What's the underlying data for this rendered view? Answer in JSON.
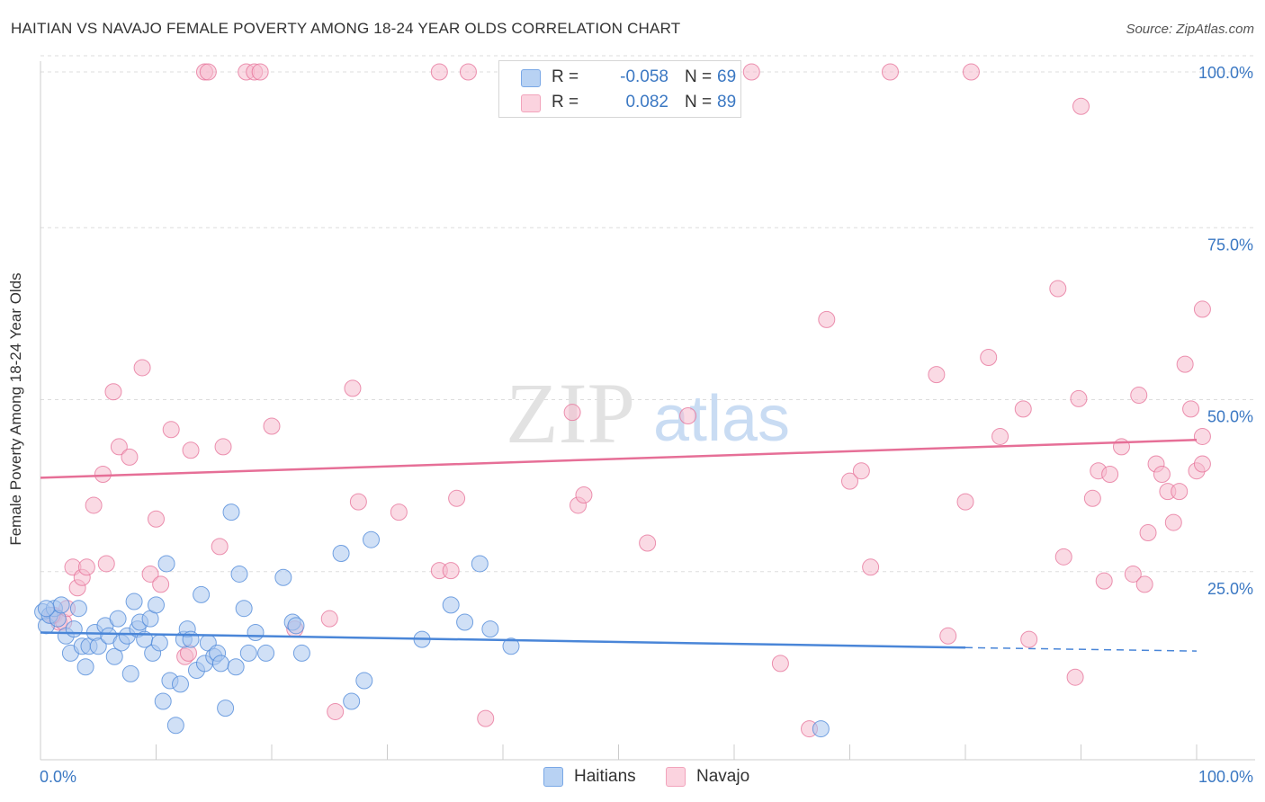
{
  "title": "HAITIAN VS NAVAJO FEMALE POVERTY AMONG 18-24 YEAR OLDS CORRELATION CHART",
  "source": "Source: ZipAtlas.com",
  "watermark": {
    "zip": "ZIP",
    "atlas": "atlas"
  },
  "legend": {
    "rows": [
      {
        "r_label": "R =",
        "r_value": "-0.058",
        "n_label": "N =",
        "n_value": "69",
        "color": "#7aa8e6"
      },
      {
        "r_label": "R =",
        "r_value": "0.082",
        "n_label": "N =",
        "n_value": "89",
        "color": "#f2a3bb"
      }
    ]
  },
  "bottom_legend": [
    {
      "label": "Haitians",
      "color": "#7aa8e6"
    },
    {
      "label": "Navajo",
      "color": "#f2a3bb"
    }
  ],
  "chart_data": {
    "type": "scatter",
    "title": "HAITIAN VS NAVAJO FEMALE POVERTY AMONG 18-24 YEAR OLDS CORRELATION CHART",
    "xlabel": "",
    "ylabel": "Female Poverty Among 18-24 Year Olds",
    "xlim": [
      0,
      100
    ],
    "ylim": [
      0,
      100
    ],
    "x_tick_labels": [
      "0.0%",
      "100.0%"
    ],
    "y_tick_labels": [
      "25.0%",
      "50.0%",
      "75.0%",
      "100.0%"
    ],
    "y_ticks": [
      25,
      50,
      75,
      100
    ],
    "grid": true,
    "legend_position": "top-center",
    "colors": {
      "haitians": "#4a86d8",
      "navajo": "#e66f97",
      "haitians_fill": "#a9c7ef",
      "navajo_fill": "#f5bccd"
    },
    "series": [
      {
        "name": "Haitians",
        "trend": {
          "x": [
            0,
            80
          ],
          "y": [
            18.5,
            16.3
          ],
          "dashed_extension": [
            80,
            100
          ],
          "dashed_end_y": 15.8
        },
        "points": [
          [
            0.2,
            21.5
          ],
          [
            0.5,
            19.5
          ],
          [
            0.8,
            21.0
          ],
          [
            1.2,
            22.0
          ],
          [
            1.5,
            20.5
          ],
          [
            1.8,
            22.5
          ],
          [
            2.2,
            18.0
          ],
          [
            2.6,
            15.5
          ],
          [
            2.9,
            19.0
          ],
          [
            3.3,
            22.0
          ],
          [
            3.6,
            16.5
          ],
          [
            3.9,
            13.5
          ],
          [
            4.2,
            16.5
          ],
          [
            4.7,
            18.5
          ],
          [
            5.0,
            16.5
          ],
          [
            5.6,
            19.5
          ],
          [
            5.9,
            18.0
          ],
          [
            6.4,
            15.0
          ],
          [
            6.7,
            20.5
          ],
          [
            7.0,
            17.0
          ],
          [
            7.5,
            18.0
          ],
          [
            7.8,
            12.5
          ],
          [
            8.1,
            23.0
          ],
          [
            8.4,
            19.0
          ],
          [
            8.6,
            20.0
          ],
          [
            9.0,
            17.5
          ],
          [
            9.5,
            20.5
          ],
          [
            9.7,
            15.5
          ],
          [
            10.0,
            22.5
          ],
          [
            10.3,
            17.0
          ],
          [
            10.6,
            8.5
          ],
          [
            10.9,
            28.5
          ],
          [
            11.2,
            11.5
          ],
          [
            11.7,
            5.0
          ],
          [
            12.1,
            11.0
          ],
          [
            12.4,
            17.5
          ],
          [
            12.7,
            19.0
          ],
          [
            13.0,
            17.5
          ],
          [
            13.5,
            13.0
          ],
          [
            13.9,
            24.0
          ],
          [
            14.2,
            14.0
          ],
          [
            14.5,
            17.0
          ],
          [
            15.0,
            15.0
          ],
          [
            15.3,
            15.5
          ],
          [
            15.6,
            14.0
          ],
          [
            16.0,
            7.5
          ],
          [
            16.5,
            36.0
          ],
          [
            16.9,
            13.5
          ],
          [
            17.2,
            27.0
          ],
          [
            17.6,
            22.0
          ],
          [
            18.0,
            15.5
          ],
          [
            18.6,
            18.5
          ],
          [
            19.5,
            15.5
          ],
          [
            21.0,
            26.5
          ],
          [
            21.8,
            20.0
          ],
          [
            22.1,
            19.5
          ],
          [
            22.6,
            15.5
          ],
          [
            26.0,
            30.0
          ],
          [
            26.9,
            8.5
          ],
          [
            28.0,
            11.5
          ],
          [
            28.6,
            32.0
          ],
          [
            33.0,
            17.5
          ],
          [
            35.5,
            22.5
          ],
          [
            36.7,
            20.0
          ],
          [
            38.0,
            28.5
          ],
          [
            38.9,
            19.0
          ],
          [
            40.7,
            16.5
          ],
          [
            67.5,
            4.5
          ],
          [
            0.5,
            22.0
          ]
        ]
      },
      {
        "name": "Navajo",
        "trend": {
          "x": [
            0,
            100
          ],
          "y": [
            41.0,
            46.5
          ]
        },
        "points": [
          [
            1.2,
            21.0
          ],
          [
            1.6,
            20.0
          ],
          [
            2.0,
            20.0
          ],
          [
            2.3,
            22.0
          ],
          [
            2.8,
            28.0
          ],
          [
            3.2,
            25.0
          ],
          [
            3.6,
            26.5
          ],
          [
            4.0,
            28.0
          ],
          [
            4.6,
            37.0
          ],
          [
            5.4,
            41.5
          ],
          [
            5.7,
            28.5
          ],
          [
            6.3,
            53.5
          ],
          [
            6.8,
            45.5
          ],
          [
            7.7,
            44.0
          ],
          [
            8.8,
            57.0
          ],
          [
            9.5,
            27.0
          ],
          [
            10.0,
            35.0
          ],
          [
            10.4,
            25.5
          ],
          [
            11.3,
            48.0
          ],
          [
            12.5,
            15.0
          ],
          [
            12.8,
            15.5
          ],
          [
            13.0,
            45.0
          ],
          [
            14.2,
            100.0
          ],
          [
            14.5,
            100.0
          ],
          [
            15.8,
            45.5
          ],
          [
            15.5,
            31.0
          ],
          [
            17.8,
            100.0
          ],
          [
            18.5,
            100.0
          ],
          [
            19.0,
            100.0
          ],
          [
            20.0,
            48.5
          ],
          [
            22.0,
            19.0
          ],
          [
            25.0,
            20.5
          ],
          [
            25.5,
            7.0
          ],
          [
            27.0,
            54.0
          ],
          [
            27.5,
            37.5
          ],
          [
            31.0,
            36.0
          ],
          [
            34.5,
            100.0
          ],
          [
            34.5,
            27.5
          ],
          [
            35.5,
            27.5
          ],
          [
            36.0,
            38.0
          ],
          [
            37.0,
            100.0
          ],
          [
            38.5,
            6.0
          ],
          [
            46.0,
            50.5
          ],
          [
            46.5,
            37.0
          ],
          [
            47.0,
            38.5
          ],
          [
            52.5,
            31.5
          ],
          [
            56.0,
            50.0
          ],
          [
            61.5,
            100.0
          ],
          [
            64.0,
            14.0
          ],
          [
            66.5,
            4.5
          ],
          [
            68.0,
            64.0
          ],
          [
            70.0,
            40.5
          ],
          [
            71.0,
            42.0
          ],
          [
            71.8,
            28.0
          ],
          [
            73.5,
            100.0
          ],
          [
            77.5,
            56.0
          ],
          [
            78.5,
            18.0
          ],
          [
            80.0,
            37.5
          ],
          [
            80.5,
            100.0
          ],
          [
            82.0,
            58.5
          ],
          [
            83.0,
            47.0
          ],
          [
            85.0,
            51.0
          ],
          [
            85.5,
            17.5
          ],
          [
            88.0,
            68.5
          ],
          [
            88.5,
            29.5
          ],
          [
            89.5,
            12.0
          ],
          [
            89.8,
            52.5
          ],
          [
            90.0,
            95.0
          ],
          [
            91.0,
            38.0
          ],
          [
            91.5,
            42.0
          ],
          [
            92.0,
            26.0
          ],
          [
            92.5,
            41.5
          ],
          [
            93.5,
            45.5
          ],
          [
            94.5,
            27.0
          ],
          [
            95.0,
            53.0
          ],
          [
            95.5,
            25.5
          ],
          [
            95.8,
            33.0
          ],
          [
            96.5,
            43.0
          ],
          [
            97.0,
            41.5
          ],
          [
            97.5,
            39.0
          ],
          [
            98.0,
            34.5
          ],
          [
            98.5,
            39.0
          ],
          [
            99.0,
            57.5
          ],
          [
            99.5,
            51.0
          ],
          [
            100.0,
            42.0
          ],
          [
            100.5,
            43.0
          ],
          [
            100.8,
            47.0
          ],
          [
            101.0,
            65.5
          ],
          [
            1.0,
            21.0
          ]
        ]
      }
    ]
  }
}
